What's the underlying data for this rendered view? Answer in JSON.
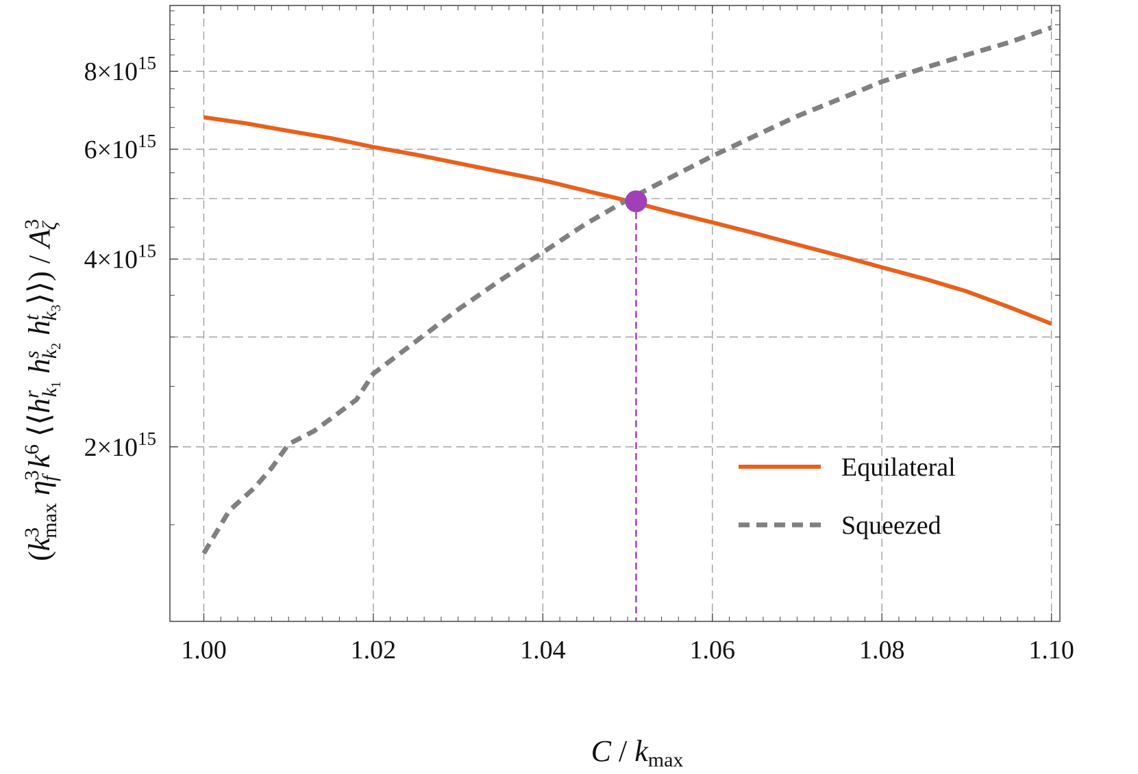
{
  "chart_data": {
    "type": "line",
    "title": "",
    "xlabel": "C / k_max",
    "ylabel": "(k_max^3 η_f^3 k^6 ⟨⟨h^r_{k1} h^s_{k2} h^t_{k3}⟩⟩) / A_ζ^3",
    "x_ticks": [
      "1.00",
      "1.02",
      "1.04",
      "1.06",
      "1.08",
      "1.10"
    ],
    "x_tick_values": [
      1.0,
      1.02,
      1.04,
      1.06,
      1.08,
      1.1
    ],
    "xlim": [
      0.996,
      1.101
    ],
    "y_scale": "log",
    "ylim": [
      1050000000000000.0,
      1.02e+16
    ],
    "y_ticks": [
      {
        "value": 2000000000000000.0,
        "mantissa": "2",
        "exponent": "15"
      },
      {
        "value": 4000000000000000.0,
        "mantissa": "4",
        "exponent": "15"
      },
      {
        "value": 6000000000000000.0,
        "mantissa": "6",
        "exponent": "15"
      },
      {
        "value": 8000000000000000.0,
        "mantissa": "8",
        "exponent": "15"
      }
    ],
    "y_minor_ticks": [
      1500000000000000.0,
      2500000000000000.0,
      3000000000000000.0,
      3500000000000000.0,
      4500000000000000.0,
      5000000000000000.0,
      5500000000000000.0,
      6500000000000000.0,
      7000000000000000.0,
      7500000000000000.0,
      8500000000000000.0,
      9000000000000000.0,
      9500000000000000.0,
      1e+16
    ],
    "grid": true,
    "legend_position": "bottom-right",
    "series": [
      {
        "name": "Equilateral",
        "color": "#E8601C",
        "style": "solid",
        "x": [
          1.0,
          1.005,
          1.01,
          1.015,
          1.02,
          1.025,
          1.03,
          1.035,
          1.04,
          1.045,
          1.05,
          1.055,
          1.06,
          1.065,
          1.07,
          1.075,
          1.08,
          1.085,
          1.09,
          1.095,
          1.1
        ],
        "y": [
          6750000000000000.0,
          6600000000000000.0,
          6420000000000000.0,
          6250000000000000.0,
          6050000000000000.0,
          5880000000000000.0,
          5700000000000000.0,
          5520000000000000.0,
          5350000000000000.0,
          5150000000000000.0,
          4960000000000000.0,
          4760000000000000.0,
          4580000000000000.0,
          4400000000000000.0,
          4220000000000000.0,
          4050000000000000.0,
          3880000000000000.0,
          3720000000000000.0,
          3550000000000000.0,
          3350000000000000.0,
          3150000000000000.0
        ]
      },
      {
        "name": "Squeezed",
        "color": "#808080",
        "style": "dashed",
        "x": [
          1.0,
          1.003,
          1.006,
          1.008,
          1.01,
          1.013,
          1.015,
          1.018,
          1.02,
          1.025,
          1.03,
          1.035,
          1.04,
          1.045,
          1.05,
          1.055,
          1.06,
          1.065,
          1.07,
          1.075,
          1.08,
          1.085,
          1.09,
          1.095,
          1.1
        ],
        "y": [
          1350000000000000.0,
          1580000000000000.0,
          1720000000000000.0,
          1850000000000000.0,
          2020000000000000.0,
          2120000000000000.0,
          2220000000000000.0,
          2380000000000000.0,
          2620000000000000.0,
          2950000000000000.0,
          3320000000000000.0,
          3700000000000000.0,
          4100000000000000.0,
          4550000000000000.0,
          4980000000000000.0,
          5400000000000000.0,
          5850000000000000.0,
          6300000000000000.0,
          6780000000000000.0,
          7220000000000000.0,
          7700000000000000.0,
          8100000000000000.0,
          8500000000000000.0,
          8900000000000000.0,
          9400000000000000.0
        ]
      }
    ],
    "marker": {
      "x": 1.051,
      "y": 4950000000000000.0,
      "color": "#A040B8"
    },
    "marker_line_color": "#A040B8"
  }
}
